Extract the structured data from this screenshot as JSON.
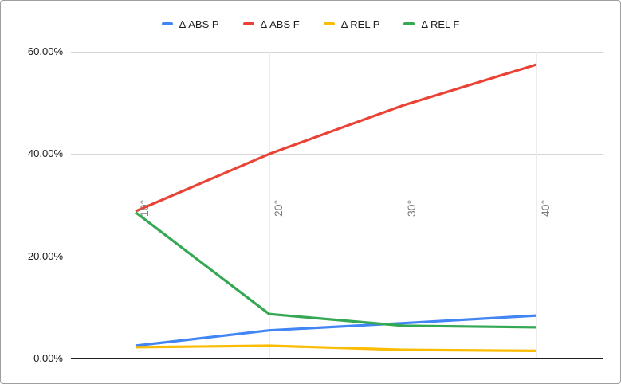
{
  "chart_data": {
    "type": "line",
    "title": "",
    "xlabel": "",
    "ylabel": "",
    "categories": [
      "10°",
      "20°",
      "30°",
      "40°"
    ],
    "series": [
      {
        "name": "Δ ABS P",
        "color": "#4285F4",
        "values": [
          2.5,
          5.5,
          6.9,
          8.4
        ]
      },
      {
        "name": "Δ ABS F",
        "color": "#EA4335",
        "values": [
          28.8,
          40.0,
          49.5,
          57.5
        ]
      },
      {
        "name": "Δ REL P",
        "color": "#FBBC04",
        "values": [
          2.2,
          2.5,
          1.7,
          1.5
        ]
      },
      {
        "name": "Δ REL F",
        "color": "#34A853",
        "values": [
          28.6,
          8.7,
          6.4,
          6.1
        ]
      }
    ],
    "ylim": [
      0,
      60
    ],
    "y_ticks": [
      {
        "label": "0.00%",
        "value": 0
      },
      {
        "label": "20.00%",
        "value": 20
      },
      {
        "label": "40.00%",
        "value": 40
      },
      {
        "label": "60.00%",
        "value": 60
      }
    ],
    "grid": true,
    "legend_position": "top"
  },
  "colors": {
    "background": "#ffffff",
    "border": "#9e9e9e",
    "axis_line": "#212121",
    "h_grid": "#d6d6d6",
    "v_grid": "#ececec",
    "y_label": "#1a1a1a",
    "x_label": "#7d7d7d",
    "legend_text": "#202124"
  }
}
